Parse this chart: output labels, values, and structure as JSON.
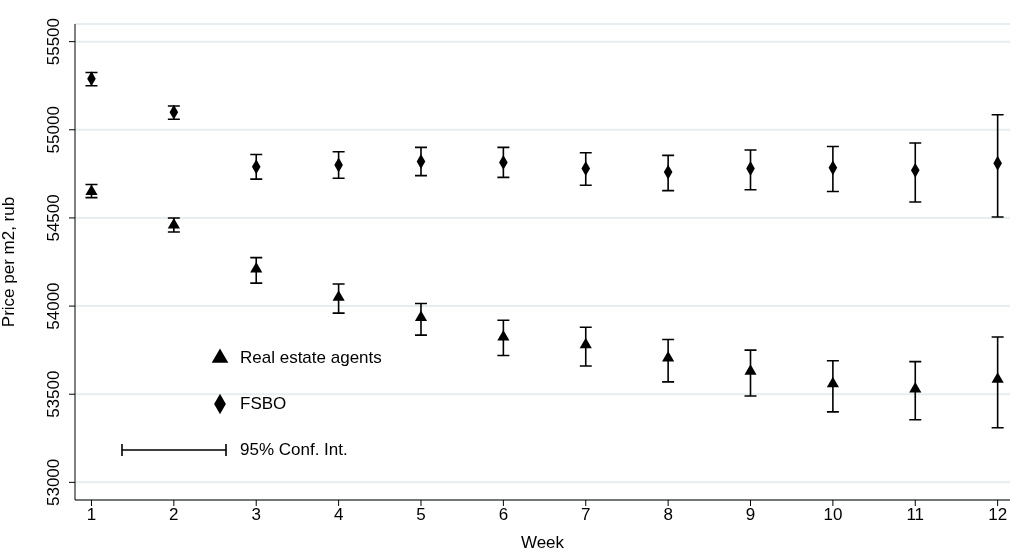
{
  "chart_data": {
    "type": "scatter",
    "xlabel": "Week",
    "ylabel": "Price per  m2, rub",
    "x": [
      1,
      2,
      3,
      4,
      5,
      6,
      7,
      8,
      9,
      10,
      11,
      12
    ],
    "series": [
      {
        "name": "Real estate agents",
        "color": "#000000",
        "marker": "triangle",
        "values": [
          54650,
          54460,
          54210,
          54050,
          53935,
          53825,
          53780,
          53705,
          53630,
          53560,
          53530,
          53585
        ],
        "errors": [
          [
            54615,
            54690
          ],
          [
            54420,
            54500
          ],
          [
            54130,
            54275
          ],
          [
            53960,
            54125
          ],
          [
            53835,
            54015
          ],
          [
            53720,
            53920
          ],
          [
            53660,
            53880
          ],
          [
            53570,
            53810
          ],
          [
            53490,
            53750
          ],
          [
            53400,
            53690
          ],
          [
            53355,
            53685
          ],
          [
            53310,
            53825
          ]
        ]
      },
      {
        "name": "FSBO",
        "color": "#000000",
        "marker": "diamond",
        "values": [
          55290,
          55100,
          54790,
          54800,
          54820,
          54815,
          54780,
          54760,
          54780,
          54785,
          54770,
          54810
        ],
        "errors": [
          [
            55250,
            55325
          ],
          [
            55060,
            55135
          ],
          [
            54720,
            54860
          ],
          [
            54725,
            54875
          ],
          [
            54740,
            54900
          ],
          [
            54730,
            54900
          ],
          [
            54685,
            54870
          ],
          [
            54655,
            54855
          ],
          [
            54660,
            54885
          ],
          [
            54650,
            54905
          ],
          [
            54590,
            54925
          ],
          [
            54505,
            55085
          ]
        ]
      }
    ],
    "annotations": [
      "95% Conf. Int."
    ],
    "xlim": [
      0.8,
      12.15
    ],
    "xticks": [
      1,
      2,
      3,
      4,
      5,
      6,
      7,
      8,
      9,
      10,
      11,
      12
    ],
    "ylim": [
      52900,
      55600
    ],
    "yticks": [
      53000,
      53500,
      54000,
      54500,
      55000,
      55500
    ],
    "grid": "y",
    "legend": "bottom left"
  }
}
